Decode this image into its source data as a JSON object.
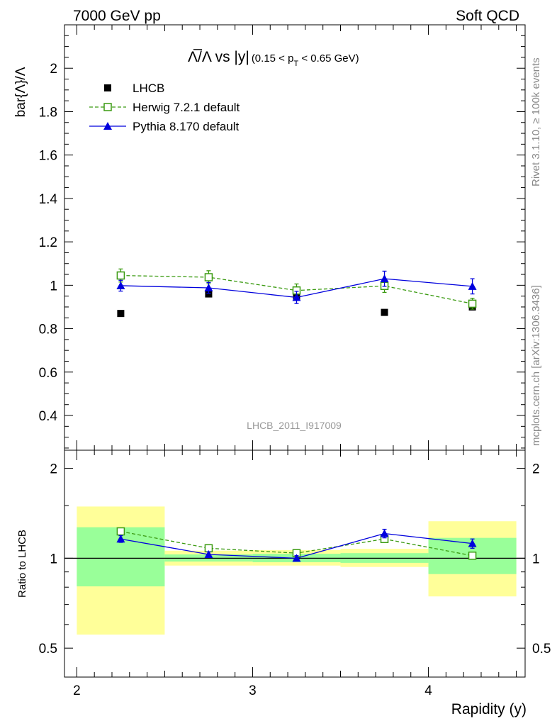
{
  "header": {
    "left": "7000 GeV pp",
    "right": "Soft QCD"
  },
  "side_labels": {
    "rivet": "Rivet 3.1.10, ≥ 100k events",
    "mcplots": "mcplots.cern.ch [arXiv:1306.3436]"
  },
  "watermark": "LHCB_2011_I917009",
  "chart_data": [
    {
      "type": "scatter",
      "panel": "main",
      "title": {
        "main": "Λ̅/Λ vs |y|",
        "cut_prefix": "(0.15 < p",
        "cut_sub": "T",
        "cut_suffix": " < 0.65 GeV)"
      },
      "ylabel": "bar{Λ}/Λ",
      "xlabel": "",
      "xlim": [
        1.93,
        4.55
      ],
      "ylim": [
        0.24,
        2.2
      ],
      "yticks": [
        0.4,
        0.6,
        0.8,
        1,
        1.2,
        1.4,
        1.6,
        1.8,
        2
      ],
      "ytick_labels": [
        "0.4",
        "0.6",
        "0.8",
        "1",
        "1.2",
        "1.4",
        "1.6",
        "1.8",
        "2"
      ],
      "legend_position": "top-left",
      "grid": false,
      "x": [
        2.25,
        2.75,
        3.25,
        3.75,
        4.25
      ],
      "series": [
        {
          "name": "LHCB",
          "marker": "filled-square",
          "color": "#000000",
          "values": [
            0.87,
            0.96,
            0.945,
            0.875,
            0.9
          ],
          "errors": [
            0.008,
            0.008,
            0.008,
            0.008,
            0.008
          ]
        },
        {
          "name": "Herwig 7.2.1 default",
          "marker": "open-square",
          "line": "dashed",
          "color": "#3a9a10",
          "values": [
            1.045,
            1.037,
            0.976,
            0.997,
            0.915
          ],
          "errors": [
            0.03,
            0.03,
            0.03,
            0.03,
            0.025
          ]
        },
        {
          "name": "Pythia 8.170 default",
          "marker": "filled-triangle",
          "line": "solid",
          "color": "#0000dd",
          "values": [
            0.998,
            0.988,
            0.944,
            1.03,
            0.995
          ],
          "errors": [
            0.025,
            0.025,
            0.028,
            0.035,
            0.035
          ]
        }
      ]
    },
    {
      "type": "scatter",
      "panel": "ratio",
      "ylabel": "Ratio to LHCB",
      "xlabel": "Rapidity (y)",
      "xlim": [
        1.93,
        4.55
      ],
      "ylim": [
        0.4,
        2.3
      ],
      "y_scale": "log",
      "yticks": [
        0.5,
        1,
        2
      ],
      "ytick_labels": [
        "0.5",
        "1",
        "2"
      ],
      "xticks": [
        2,
        3,
        4
      ],
      "xtick_labels": [
        "2",
        "3",
        "4"
      ],
      "reference_line": 1,
      "bins": [
        {
          "lo": 2.0,
          "hi": 2.5,
          "yellow": [
            0.555,
            1.49
          ],
          "green": [
            0.805,
            1.27
          ]
        },
        {
          "lo": 2.5,
          "hi": 3.0,
          "yellow": [
            0.945,
            1.06
          ],
          "green": [
            0.975,
            1.03
          ]
        },
        {
          "lo": 3.0,
          "hi": 3.5,
          "yellow": [
            0.945,
            1.065
          ],
          "green": [
            0.97,
            1.035
          ]
        },
        {
          "lo": 3.5,
          "hi": 4.0,
          "yellow": [
            0.935,
            1.075
          ],
          "green": [
            0.965,
            1.04
          ]
        },
        {
          "lo": 4.0,
          "hi": 4.5,
          "yellow": [
            0.745,
            1.33
          ],
          "green": [
            0.885,
            1.17
          ]
        }
      ],
      "x": [
        2.25,
        2.75,
        3.25,
        3.75,
        4.25
      ],
      "series": [
        {
          "name": "Herwig 7.2.1 default",
          "marker": "open-square",
          "line": "dashed",
          "color": "#3a9a10",
          "values": [
            1.23,
            1.08,
            1.04,
            1.16,
            1.02
          ],
          "errors": [
            0.015,
            0.015,
            0.015,
            0.015,
            0.02
          ]
        },
        {
          "name": "Pythia 8.170 default",
          "marker": "filled-triangle",
          "line": "solid",
          "color": "#0000dd",
          "values": [
            1.16,
            1.03,
            1.0,
            1.21,
            1.12
          ],
          "errors": [
            0.03,
            0.02,
            0.02,
            0.04,
            0.04
          ]
        }
      ]
    }
  ]
}
